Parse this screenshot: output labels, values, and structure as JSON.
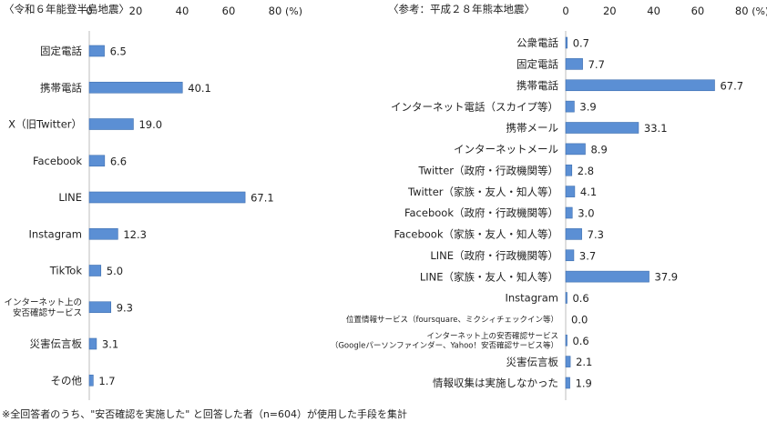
{
  "footnote": "※全回答者のうち、\"安否確認を実施した\" と回答した者（n=604）が使用した手段を集計",
  "chart_data": [
    {
      "type": "bar",
      "orientation": "horizontal",
      "title": "〈令和６年能登半島地震〉",
      "unit_label": "(%)",
      "xlim": [
        0,
        80
      ],
      "ticks": [
        "0",
        "20",
        "40",
        "60",
        "80"
      ],
      "tick_values": [
        0,
        20,
        40,
        60,
        80
      ],
      "bar_color": "#5b8fd4",
      "categories": [
        [
          "固定電話"
        ],
        [
          "携帯電話"
        ],
        [
          "X（旧Twitter）"
        ],
        [
          "Facebook"
        ],
        [
          "LINE"
        ],
        [
          "Instagram"
        ],
        [
          "TikTok"
        ],
        [
          "インターネット上の",
          "安否確認サービス"
        ],
        [
          "災害伝言板"
        ],
        [
          "その他"
        ]
      ],
      "values": [
        6.5,
        40.1,
        19.0,
        6.6,
        67.1,
        12.3,
        5.0,
        9.3,
        3.1,
        1.7
      ],
      "labels": [
        "6.5",
        "40.1",
        "19.0",
        "6.6",
        "67.1",
        "12.3",
        "5.0",
        "9.3",
        "3.1",
        "1.7"
      ]
    },
    {
      "type": "bar",
      "orientation": "horizontal",
      "title": "〈参考：平成２８年熊本地震〉",
      "unit_label": "(%)",
      "xlim": [
        0,
        80
      ],
      "ticks": [
        "0",
        "20",
        "40",
        "60",
        "80"
      ],
      "tick_values": [
        0,
        20,
        40,
        60,
        80
      ],
      "bar_color": "#5b8fd4",
      "categories": [
        [
          "公衆電話"
        ],
        [
          "固定電話"
        ],
        [
          "携帯電話"
        ],
        [
          "インターネット電話（スカイプ等）"
        ],
        [
          "携帯メール"
        ],
        [
          "インターネットメール"
        ],
        [
          "Twitter（政府・行政機関等）"
        ],
        [
          "Twitter（家族・友人・知人等）"
        ],
        [
          "Facebook（政府・行政機関等）"
        ],
        [
          "Facebook（家族・友人・知人等）"
        ],
        [
          "LINE（政府・行政機関等）"
        ],
        [
          "LINE（家族・友人・知人等）"
        ],
        [
          "Instagram"
        ],
        [
          "位置情報サービス（foursquare、ミクシィチェックイン等）"
        ],
        [
          "インターネット上の安否確認サービス",
          "（Googleパーソンファインダー、Yahoo！安否確認サービス等）"
        ],
        [
          "災害伝言板"
        ],
        [
          "情報収集は実施しなかった"
        ]
      ],
      "values": [
        0.7,
        7.7,
        67.7,
        3.9,
        33.1,
        8.9,
        2.8,
        4.1,
        3.0,
        7.3,
        3.7,
        37.9,
        0.6,
        0.0,
        0.6,
        2.1,
        1.9
      ],
      "labels": [
        "0.7",
        "7.7",
        "67.7",
        "3.9",
        "33.1",
        "8.9",
        "2.8",
        "4.1",
        "3.0",
        "7.3",
        "3.7",
        "37.9",
        "0.6",
        "0.0",
        "0.6",
        "2.1",
        "1.9"
      ]
    }
  ]
}
